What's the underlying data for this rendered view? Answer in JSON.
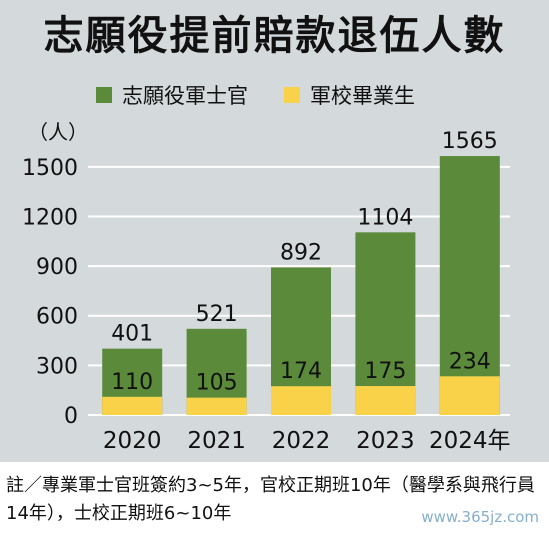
{
  "title": "志願役提前賠款退伍人數",
  "unit": "（人）",
  "note": "註／專業軍士官班簽約3~5年，官校正期班10年（醫學系與飛行員14年），士校正期班6~10年",
  "watermark": "www.365jz.com",
  "colors": {
    "green": "#5a8a3a",
    "yellow": "#f9d24a",
    "background": "#d4d9dc",
    "grid": "#ffffff"
  },
  "chart_data": {
    "type": "bar",
    "stacked": true,
    "categories": [
      "2020",
      "2021",
      "2022",
      "2023",
      "2024年"
    ],
    "series": [
      {
        "name": "軍校畢業生",
        "values": [
          110,
          105,
          174,
          175,
          234
        ]
      },
      {
        "name": "志願役軍士官",
        "values": [
          401,
          521,
          892,
          1104,
          1565
        ]
      }
    ],
    "yticks": [
      0,
      300,
      600,
      900,
      1200,
      1500
    ],
    "ylim": [
      0,
      1650
    ],
    "grid": true,
    "legend_position": "top"
  }
}
